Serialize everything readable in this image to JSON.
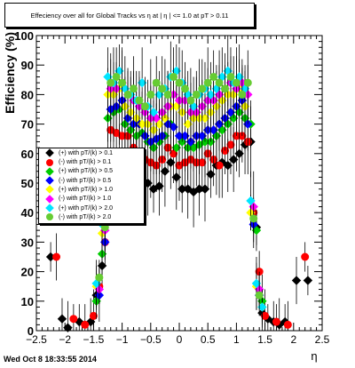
{
  "title": "Effeciency over all for Global Tracks vs  η at | η | <= 1.0 at pT > 0.11",
  "timestamp": "Wed Oct  8 18:33:55 2014",
  "chart_data": {
    "type": "scatter",
    "xlabel": "η",
    "ylabel": "Efficiency (%)",
    "xlim": [
      -2.5,
      2.5
    ],
    "ylim": [
      0,
      100
    ],
    "x_ticks": [
      "−2.5",
      "−2",
      "−1.5",
      "−1",
      "−0.5",
      "0",
      "0.5",
      "1",
      "1.5",
      "2",
      "2.5"
    ],
    "y_ticks": [
      "0",
      "10",
      "20",
      "30",
      "40",
      "50",
      "60",
      "70",
      "80",
      "90",
      "100"
    ],
    "grid": false,
    "legend_position": "left-middle",
    "series": [
      {
        "name": "(+) with pT/(k) > 0.1",
        "color": "#000000",
        "marker": "diamond",
        "x": [
          -2.25,
          -2.05,
          -1.95,
          -1.75,
          -1.55,
          -1.45,
          -1.35,
          -1.25,
          -1.15,
          -1.05,
          -0.95,
          -0.85,
          -0.75,
          -0.65,
          -0.55,
          -0.45,
          -0.35,
          -0.25,
          -0.15,
          -0.05,
          0.05,
          0.15,
          0.25,
          0.35,
          0.45,
          0.55,
          0.65,
          0.75,
          0.85,
          0.95,
          1.05,
          1.15,
          1.25,
          1.35,
          1.45,
          1.55,
          1.65,
          1.75,
          1.85,
          2.05,
          2.25
        ],
        "y": [
          25,
          4,
          1,
          3,
          3,
          12,
          22,
          55,
          60,
          59,
          58,
          57,
          56,
          52,
          50,
          48,
          49,
          54,
          57,
          52,
          48,
          48,
          47,
          48,
          48,
          53,
          56,
          57,
          56,
          58,
          60,
          63,
          64,
          35,
          6,
          4,
          3,
          2,
          3,
          17,
          17
        ]
      },
      {
        "name": "(-) with pT/(k) > 0.1",
        "color": "#ff0000",
        "marker": "circle",
        "x": [
          -2.15,
          -1.85,
          -1.65,
          -1.5,
          -1.4,
          -1.3,
          -1.2,
          -1.1,
          -1.0,
          -0.9,
          -0.8,
          -0.7,
          -0.6,
          -0.5,
          -0.4,
          -0.3,
          -0.2,
          -0.1,
          0.0,
          0.1,
          0.2,
          0.3,
          0.4,
          0.5,
          0.6,
          0.7,
          0.8,
          0.9,
          1.0,
          1.1,
          1.2,
          1.3,
          1.4,
          1.5,
          1.7,
          1.9,
          2.2
        ],
        "y": [
          25,
          4,
          2,
          5,
          15,
          30,
          68,
          67,
          66,
          66,
          62,
          60,
          58,
          57,
          56,
          58,
          62,
          60,
          56,
          57,
          58,
          57,
          57,
          60,
          58,
          56,
          61,
          63,
          66,
          66,
          64,
          40,
          20,
          5,
          3,
          2,
          25
        ]
      },
      {
        "name": "(+) with pT/(k) > 0.5",
        "color": "#00cc00",
        "marker": "diamond",
        "x": [
          -1.45,
          -1.35,
          -1.25,
          -1.15,
          -1.05,
          -0.95,
          -0.85,
          -0.75,
          -0.65,
          -0.55,
          -0.45,
          -0.35,
          -0.25,
          -0.15,
          -0.05,
          0.05,
          0.15,
          0.25,
          0.35,
          0.45,
          0.55,
          0.65,
          0.75,
          0.85,
          0.95,
          1.05,
          1.15,
          1.25,
          1.35,
          1.45
        ],
        "y": [
          10,
          26,
          72,
          74,
          75,
          70,
          68,
          66,
          67,
          64,
          62,
          64,
          66,
          70,
          62,
          64,
          62,
          62,
          63,
          64,
          64,
          66,
          68,
          70,
          72,
          74,
          72,
          70,
          34,
          10
        ]
      },
      {
        "name": "(-) with pT/(k) > 0.5",
        "color": "#0000ff",
        "marker": "diamond",
        "x": [
          -1.4,
          -1.3,
          -1.2,
          -1.1,
          -1.0,
          -0.9,
          -0.8,
          -0.7,
          -0.6,
          -0.5,
          -0.4,
          -0.3,
          -0.2,
          -0.1,
          0.0,
          0.1,
          0.2,
          0.3,
          0.4,
          0.5,
          0.6,
          0.7,
          0.8,
          0.9,
          1.0,
          1.1,
          1.2,
          1.3,
          1.4
        ],
        "y": [
          12,
          30,
          75,
          76,
          78,
          72,
          70,
          70,
          66,
          64,
          65,
          66,
          70,
          69,
          66,
          66,
          64,
          66,
          66,
          68,
          68,
          70,
          72,
          74,
          76,
          78,
          70,
          36,
          12
        ]
      },
      {
        "name": "(+) with pT/(k) > 1.0",
        "color": "#ffff00",
        "marker": "diamond",
        "x": [
          -1.45,
          -1.35,
          -1.25,
          -1.15,
          -1.05,
          -0.95,
          -0.85,
          -0.75,
          -0.65,
          -0.55,
          -0.45,
          -0.35,
          -0.25,
          -0.15,
          -0.05,
          0.05,
          0.15,
          0.25,
          0.35,
          0.45,
          0.55,
          0.65,
          0.75,
          0.85,
          0.95,
          1.05,
          1.15,
          1.25,
          1.35,
          1.45
        ],
        "y": [
          15,
          33,
          80,
          80,
          82,
          76,
          74,
          72,
          70,
          70,
          68,
          70,
          72,
          76,
          76,
          74,
          70,
          72,
          72,
          72,
          74,
          76,
          78,
          80,
          80,
          82,
          76,
          40,
          15,
          8
        ]
      },
      {
        "name": "(-) with pT/(k) > 1.0",
        "color": "#ff00ff",
        "marker": "diamond",
        "x": [
          -1.4,
          -1.3,
          -1.2,
          -1.1,
          -1.0,
          -0.9,
          -0.8,
          -0.7,
          -0.6,
          -0.5,
          -0.4,
          -0.3,
          -0.2,
          -0.1,
          0.0,
          0.1,
          0.2,
          0.3,
          0.4,
          0.5,
          0.6,
          0.7,
          0.8,
          0.9,
          1.0,
          1.1,
          1.2,
          1.3,
          1.4
        ],
        "y": [
          14,
          34,
          82,
          82,
          84,
          80,
          78,
          76,
          74,
          72,
          72,
          74,
          76,
          80,
          78,
          78,
          74,
          74,
          76,
          78,
          78,
          80,
          82,
          84,
          82,
          84,
          80,
          42,
          14
        ]
      },
      {
        "name": "(+) with pT/(k) > 2.0",
        "color": "#00e5ff",
        "marker": "diamond",
        "x": [
          -1.45,
          -1.35,
          -1.25,
          -1.15,
          -1.05,
          -0.95,
          -0.85,
          -0.75,
          -0.65,
          -0.55,
          -0.45,
          -0.35,
          -0.25,
          -0.15,
          -0.05,
          0.05,
          0.15,
          0.25,
          0.35,
          0.45,
          0.55,
          0.65,
          0.75,
          0.85,
          0.95,
          1.05,
          1.15,
          1.25,
          1.35,
          1.45
        ],
        "y": [
          16,
          36,
          86,
          84,
          88,
          82,
          80,
          78,
          84,
          76,
          74,
          80,
          82,
          86,
          88,
          84,
          80,
          76,
          80,
          82,
          80,
          82,
          86,
          88,
          84,
          86,
          82,
          44,
          16,
          8
        ]
      },
      {
        "name": "(-) with pT/(k) > 2.0",
        "color": "#66cc33",
        "marker": "circle",
        "x": [
          -1.4,
          -1.3,
          -1.2,
          -1.1,
          -1.0,
          -0.9,
          -0.8,
          -0.7,
          -0.6,
          -0.5,
          -0.4,
          -0.3,
          -0.2,
          -0.1,
          0.0,
          0.1,
          0.2,
          0.3,
          0.4,
          0.5,
          0.6,
          0.7,
          0.8,
          0.9,
          1.0,
          1.1,
          1.2,
          1.3,
          1.4
        ],
        "y": [
          18,
          35,
          84,
          86,
          84,
          80,
          82,
          78,
          76,
          80,
          84,
          82,
          80,
          86,
          84,
          82,
          78,
          80,
          82,
          84,
          86,
          84,
          82,
          86,
          84,
          80,
          84,
          38,
          12
        ]
      }
    ]
  }
}
